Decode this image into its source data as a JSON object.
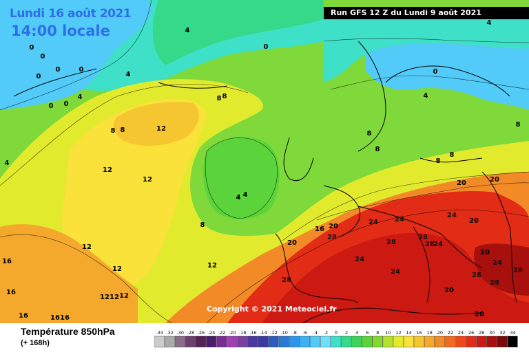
{
  "header": {
    "date": "Lundi 16 août 2021",
    "time": "14:00 locale",
    "run": "Run GFS 12 Z du Lundi 9 août 2021"
  },
  "copyright": "Copyright © 2021 Meteociel.fr",
  "footer": {
    "parameter": "Température 850hPa",
    "horizon": "(+ 168h)"
  },
  "scale": {
    "ticks": [
      "-34",
      "-32",
      "-30",
      "-28",
      "-26",
      "-24",
      "-22",
      "-20",
      "-18",
      "-16",
      "-14",
      "-12",
      "-10",
      "-8",
      "-6",
      "-4",
      "-2",
      "0",
      "2",
      "4",
      "6",
      "8",
      "10",
      "12",
      "14",
      "16",
      "18",
      "20",
      "22",
      "24",
      "26",
      "28",
      "30",
      "32",
      "34"
    ],
    "colors": [
      "#cccccc",
      "#aaaaaa",
      "#8a6d8a",
      "#6d3f6d",
      "#552255",
      "#4a1c6b",
      "#7a2b92",
      "#a040b0",
      "#7b3f9c",
      "#4b3a9c",
      "#3a3aa0",
      "#2c5bc0",
      "#2a78d6",
      "#2e96ea",
      "#3ab2f4",
      "#52cbf8",
      "#6ce0fa",
      "#3ee0c8",
      "#36d88a",
      "#3ed25a",
      "#5ad43a",
      "#82da2a",
      "#b4e22a",
      "#e2ea2e",
      "#fae23a",
      "#f6c630",
      "#f4a82c",
      "#f28a28",
      "#f06a22",
      "#ec4a1c",
      "#e22c16",
      "#cc1a12",
      "#a8100e",
      "#7a0a0a",
      "#000000"
    ]
  },
  "map_labels": [
    {
      "text": "0"
    },
    {
      "text": "0"
    },
    {
      "text": "0"
    },
    {
      "text": "0"
    },
    {
      "text": "0"
    },
    {
      "text": "0"
    },
    {
      "text": "0"
    },
    {
      "text": "0"
    },
    {
      "text": "0"
    },
    {
      "text": "4"
    },
    {
      "text": "4"
    },
    {
      "text": "4"
    },
    {
      "text": "4"
    },
    {
      "text": "4"
    },
    {
      "text": "4"
    },
    {
      "text": "4"
    },
    {
      "text": "4"
    },
    {
      "text": "8"
    },
    {
      "text": "8"
    },
    {
      "text": "8"
    },
    {
      "text": "8"
    },
    {
      "text": "8"
    },
    {
      "text": "8"
    },
    {
      "text": "8"
    },
    {
      "text": "8"
    },
    {
      "text": "8"
    },
    {
      "text": "8"
    },
    {
      "text": "12"
    },
    {
      "text": "12"
    },
    {
      "text": "12"
    },
    {
      "text": "12"
    },
    {
      "text": "12"
    },
    {
      "text": "12"
    },
    {
      "text": "12"
    },
    {
      "text": "12"
    },
    {
      "text": "12"
    },
    {
      "text": "16"
    },
    {
      "text": "16"
    },
    {
      "text": "16"
    },
    {
      "text": "16"
    },
    {
      "text": "16"
    },
    {
      "text": "16"
    },
    {
      "text": "20"
    },
    {
      "text": "20"
    },
    {
      "text": "20"
    },
    {
      "text": "20"
    },
    {
      "text": "20"
    },
    {
      "text": "20"
    },
    {
      "text": "20"
    },
    {
      "text": "20"
    },
    {
      "text": "24"
    },
    {
      "text": "24"
    },
    {
      "text": "24"
    },
    {
      "text": "24"
    },
    {
      "text": "24"
    },
    {
      "text": "24"
    },
    {
      "text": "24"
    },
    {
      "text": "28"
    },
    {
      "text": "28"
    },
    {
      "text": "28"
    },
    {
      "text": "28"
    },
    {
      "text": "28"
    },
    {
      "text": "28"
    },
    {
      "text": "28"
    },
    {
      "text": "28"
    }
  ]
}
